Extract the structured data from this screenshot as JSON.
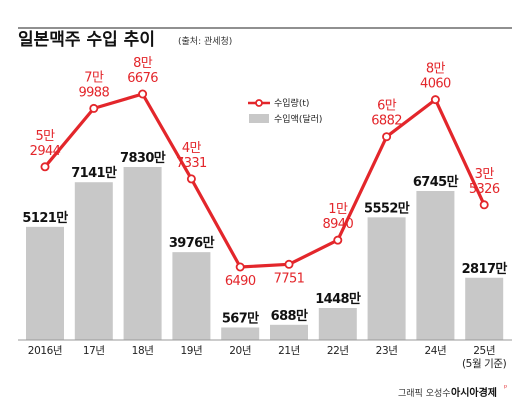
{
  "chart_data": {
    "type": "bar",
    "title": "일본맥주 수입 추이",
    "source_note": "(출처: 관세청)",
    "categories": [
      "2016년",
      "17년",
      "18년",
      "19년",
      "20년",
      "21년",
      "22년",
      "23년",
      "24년",
      "25년"
    ],
    "category_notes": [
      "",
      "",
      "",
      "",
      "",
      "",
      "",
      "",
      "",
      "(5월 기준)"
    ],
    "series": [
      {
        "name": "수입량(t)",
        "type": "line",
        "values": [
          52944,
          79988,
          86676,
          47331,
          6490,
          7751,
          18940,
          66882,
          84060,
          35326
        ],
        "label_lines": [
          [
            "5만",
            "2944"
          ],
          [
            "7만",
            "9988"
          ],
          [
            "8만",
            "6676"
          ],
          [
            "4만",
            "7331"
          ],
          [
            "6490"
          ],
          [
            "7751"
          ],
          [
            "1만",
            "8940"
          ],
          [
            "6만",
            "6882"
          ],
          [
            "8만",
            "4060"
          ],
          [
            "3만",
            "5326"
          ]
        ]
      },
      {
        "name": "수입액(달러)",
        "type": "bar",
        "values": [
          51210000,
          71410000,
          78300000,
          39760000,
          5670000,
          6880000,
          14480000,
          55520000,
          67450000,
          28170000
        ],
        "labels": [
          "5121만",
          "7141만",
          "7830만",
          "3976만",
          "567만",
          "688만",
          "1448만",
          "5552만",
          "6745만",
          "2817만"
        ]
      }
    ],
    "legend_position": "upper-center",
    "grid": false
  },
  "footer": {
    "credit": "그래픽 오성수",
    "brand": "아시아경제"
  },
  "colors": {
    "line": "#e3262b",
    "bar": "#c8c8c8",
    "title_rule": "#222222"
  }
}
